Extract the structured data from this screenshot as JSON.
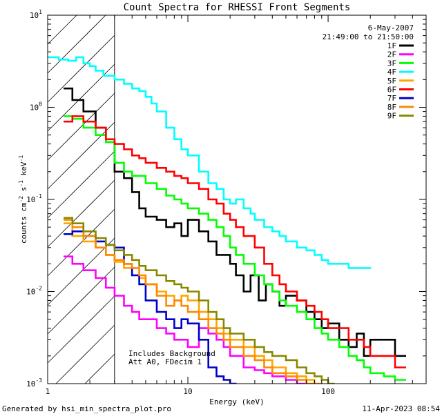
{
  "chart_data": {
    "type": "line",
    "title": "Count Spectra for RHESSI Front Segments",
    "xlabel": "Energy (keV)",
    "ylabel_parts": [
      "counts cm",
      "-2",
      " s",
      "-1",
      " keV",
      "-1"
    ],
    "xscale": "log",
    "yscale": "log",
    "xlim": [
      1,
      500
    ],
    "ylim": [
      0.001,
      10
    ],
    "x_ticks": [
      {
        "value": 1,
        "label": "1"
      },
      {
        "value": 10,
        "label": "10"
      },
      {
        "value": 100,
        "label": "100"
      }
    ],
    "y_ticks": [
      {
        "value": 0.001,
        "base": "10",
        "exp": "-3"
      },
      {
        "value": 0.01,
        "base": "10",
        "exp": "-2"
      },
      {
        "value": 0.1,
        "base": "10",
        "exp": "-1"
      },
      {
        "value": 1,
        "base": "10",
        "exp": "0"
      },
      {
        "value": 10,
        "base": "10",
        "exp": "1"
      }
    ],
    "hatched_region_keV": [
      1,
      3
    ],
    "legend_header": [
      "6-May-2007",
      "21:49:00 to 21:50:00"
    ],
    "annotations": [
      "Includes Background",
      "Att A0, FDecim 1"
    ],
    "series": [
      {
        "name": "1F",
        "color": "#000000",
        "points": [
          [
            1.3,
            1.6
          ],
          [
            1.5,
            1.2
          ],
          [
            1.8,
            0.9
          ],
          [
            2.2,
            0.6
          ],
          [
            2.6,
            0.42
          ],
          [
            3.0,
            0.2
          ],
          [
            3.5,
            0.17
          ],
          [
            4.0,
            0.12
          ],
          [
            4.5,
            0.08
          ],
          [
            5.0,
            0.065
          ],
          [
            6.0,
            0.06
          ],
          [
            7.0,
            0.05
          ],
          [
            8.0,
            0.055
          ],
          [
            9.0,
            0.04
          ],
          [
            10.0,
            0.06
          ],
          [
            12,
            0.045
          ],
          [
            14,
            0.035
          ],
          [
            16,
            0.025
          ],
          [
            18,
            0.025
          ],
          [
            20,
            0.02
          ],
          [
            22,
            0.015
          ],
          [
            25,
            0.01
          ],
          [
            28,
            0.015
          ],
          [
            32,
            0.008
          ],
          [
            36,
            0.012
          ],
          [
            40,
            0.01
          ],
          [
            45,
            0.007
          ],
          [
            50,
            0.009
          ],
          [
            60,
            0.008
          ],
          [
            70,
            0.006
          ],
          [
            80,
            0.005
          ],
          [
            90,
            0.004
          ],
          [
            100,
            0.0045
          ],
          [
            120,
            0.003
          ],
          [
            140,
            0.0025
          ],
          [
            160,
            0.0035
          ],
          [
            180,
            0.002
          ],
          [
            200,
            0.003
          ],
          [
            250,
            0.003
          ],
          [
            300,
            0.002
          ]
        ]
      },
      {
        "name": "2F",
        "color": "#ff00ff",
        "points": [
          [
            1.3,
            0.024
          ],
          [
            1.5,
            0.02
          ],
          [
            1.8,
            0.017
          ],
          [
            2.2,
            0.014
          ],
          [
            2.6,
            0.011
          ],
          [
            3.0,
            0.009
          ],
          [
            3.5,
            0.007
          ],
          [
            4.0,
            0.006
          ],
          [
            4.5,
            0.005
          ],
          [
            5.0,
            0.005
          ],
          [
            6.0,
            0.004
          ],
          [
            7.0,
            0.0035
          ],
          [
            8.0,
            0.003
          ],
          [
            9.0,
            0.003
          ],
          [
            10,
            0.0025
          ],
          [
            12,
            0.004
          ],
          [
            14,
            0.0035
          ],
          [
            16,
            0.003
          ],
          [
            18,
            0.0025
          ],
          [
            20,
            0.002
          ],
          [
            25,
            0.0015
          ],
          [
            30,
            0.0014
          ],
          [
            35,
            0.0013
          ],
          [
            40,
            0.0012
          ],
          [
            50,
            0.0011
          ],
          [
            60,
            0.001
          ]
        ]
      },
      {
        "name": "3F",
        "color": "#00ff00",
        "points": [
          [
            1.3,
            0.8
          ],
          [
            1.5,
            0.75
          ],
          [
            1.8,
            0.6
          ],
          [
            2.2,
            0.5
          ],
          [
            2.6,
            0.42
          ],
          [
            3.0,
            0.25
          ],
          [
            3.5,
            0.2
          ],
          [
            4.0,
            0.18
          ],
          [
            5.0,
            0.15
          ],
          [
            6.0,
            0.13
          ],
          [
            7.0,
            0.11
          ],
          [
            8.0,
            0.1
          ],
          [
            9.0,
            0.09
          ],
          [
            10,
            0.08
          ],
          [
            12,
            0.07
          ],
          [
            14,
            0.06
          ],
          [
            16,
            0.05
          ],
          [
            18,
            0.04
          ],
          [
            20,
            0.03
          ],
          [
            22,
            0.025
          ],
          [
            25,
            0.02
          ],
          [
            30,
            0.015
          ],
          [
            35,
            0.012
          ],
          [
            40,
            0.01
          ],
          [
            45,
            0.008
          ],
          [
            50,
            0.007
          ],
          [
            60,
            0.006
          ],
          [
            70,
            0.005
          ],
          [
            80,
            0.004
          ],
          [
            90,
            0.0035
          ],
          [
            100,
            0.003
          ],
          [
            120,
            0.0025
          ],
          [
            140,
            0.002
          ],
          [
            160,
            0.0018
          ],
          [
            180,
            0.0015
          ],
          [
            200,
            0.0013
          ],
          [
            250,
            0.0012
          ],
          [
            300,
            0.0011
          ]
        ]
      },
      {
        "name": "4F",
        "color": "#00ffff",
        "points": [
          [
            1.0,
            3.5
          ],
          [
            1.2,
            3.3
          ],
          [
            1.4,
            3.2
          ],
          [
            1.6,
            3.5
          ],
          [
            1.8,
            3.0
          ],
          [
            2.0,
            2.8
          ],
          [
            2.2,
            2.5
          ],
          [
            2.5,
            2.2
          ],
          [
            3.0,
            2.0
          ],
          [
            3.5,
            1.8
          ],
          [
            4.0,
            1.6
          ],
          [
            4.5,
            1.5
          ],
          [
            5.0,
            1.3
          ],
          [
            5.5,
            1.1
          ],
          [
            6.0,
            0.9
          ],
          [
            7.0,
            0.6
          ],
          [
            8.0,
            0.45
          ],
          [
            9.0,
            0.35
          ],
          [
            10,
            0.3
          ],
          [
            12,
            0.2
          ],
          [
            14,
            0.15
          ],
          [
            16,
            0.13
          ],
          [
            18,
            0.1
          ],
          [
            20,
            0.09
          ],
          [
            22,
            0.1
          ],
          [
            25,
            0.08
          ],
          [
            28,
            0.07
          ],
          [
            30,
            0.06
          ],
          [
            35,
            0.05
          ],
          [
            40,
            0.045
          ],
          [
            45,
            0.04
          ],
          [
            50,
            0.035
          ],
          [
            60,
            0.03
          ],
          [
            70,
            0.028
          ],
          [
            80,
            0.025
          ],
          [
            90,
            0.022
          ],
          [
            100,
            0.02
          ],
          [
            120,
            0.02
          ],
          [
            140,
            0.018
          ],
          [
            160,
            0.018
          ],
          [
            180,
            0.018
          ]
        ]
      },
      {
        "name": "5F",
        "color": "#ffa500",
        "points": [
          [
            1.3,
            0.055
          ],
          [
            1.5,
            0.04
          ],
          [
            1.8,
            0.035
          ],
          [
            2.2,
            0.03
          ],
          [
            2.6,
            0.025
          ],
          [
            3.0,
            0.021
          ],
          [
            3.5,
            0.018
          ],
          [
            4.0,
            0.015
          ],
          [
            4.5,
            0.014
          ],
          [
            5.0,
            0.012
          ],
          [
            6.0,
            0.01
          ],
          [
            7.0,
            0.009
          ],
          [
            8.0,
            0.008
          ],
          [
            9.0,
            0.009
          ],
          [
            10,
            0.008
          ],
          [
            12,
            0.006
          ],
          [
            14,
            0.005
          ],
          [
            16,
            0.004
          ],
          [
            18,
            0.0035
          ],
          [
            20,
            0.003
          ],
          [
            25,
            0.0025
          ],
          [
            30,
            0.002
          ],
          [
            35,
            0.0018
          ],
          [
            40,
            0.0015
          ],
          [
            50,
            0.0013
          ],
          [
            60,
            0.0012
          ],
          [
            70,
            0.0011
          ],
          [
            80,
            0.001
          ]
        ]
      },
      {
        "name": "6F",
        "color": "#ff0000",
        "points": [
          [
            1.3,
            0.7
          ],
          [
            1.5,
            0.8
          ],
          [
            1.8,
            0.7
          ],
          [
            2.2,
            0.6
          ],
          [
            2.6,
            0.45
          ],
          [
            3.0,
            0.4
          ],
          [
            3.5,
            0.35
          ],
          [
            4.0,
            0.3
          ],
          [
            4.5,
            0.28
          ],
          [
            5.0,
            0.25
          ],
          [
            6.0,
            0.22
          ],
          [
            7.0,
            0.2
          ],
          [
            8.0,
            0.18
          ],
          [
            9.0,
            0.17
          ],
          [
            10,
            0.15
          ],
          [
            12,
            0.13
          ],
          [
            14,
            0.1
          ],
          [
            16,
            0.09
          ],
          [
            18,
            0.07
          ],
          [
            20,
            0.06
          ],
          [
            22,
            0.05
          ],
          [
            25,
            0.04
          ],
          [
            30,
            0.03
          ],
          [
            35,
            0.02
          ],
          [
            40,
            0.015
          ],
          [
            45,
            0.012
          ],
          [
            50,
            0.01
          ],
          [
            60,
            0.008
          ],
          [
            70,
            0.007
          ],
          [
            80,
            0.006
          ],
          [
            90,
            0.005
          ],
          [
            100,
            0.004
          ],
          [
            120,
            0.004
          ],
          [
            140,
            0.003
          ],
          [
            160,
            0.003
          ],
          [
            180,
            0.0025
          ],
          [
            200,
            0.002
          ],
          [
            250,
            0.002
          ],
          [
            300,
            0.0015
          ]
        ]
      },
      {
        "name": "7F",
        "color": "#0000cc",
        "points": [
          [
            1.3,
            0.042
          ],
          [
            1.5,
            0.045
          ],
          [
            1.8,
            0.04
          ],
          [
            2.2,
            0.035
          ],
          [
            2.6,
            0.032
          ],
          [
            3.0,
            0.03
          ],
          [
            3.5,
            0.02
          ],
          [
            4.0,
            0.015
          ],
          [
            4.5,
            0.012
          ],
          [
            5.0,
            0.008
          ],
          [
            6.0,
            0.006
          ],
          [
            7.0,
            0.005
          ],
          [
            8.0,
            0.004
          ],
          [
            9.0,
            0.005
          ],
          [
            10,
            0.0045
          ],
          [
            12,
            0.003
          ],
          [
            14,
            0.0015
          ],
          [
            16,
            0.0012
          ],
          [
            18,
            0.0011
          ],
          [
            20,
            0.001
          ]
        ]
      },
      {
        "name": "8F",
        "color": "#ff8800",
        "points": [
          [
            1.3,
            0.06
          ],
          [
            1.5,
            0.05
          ],
          [
            1.8,
            0.04
          ],
          [
            2.2,
            0.03
          ],
          [
            2.6,
            0.025
          ],
          [
            3.0,
            0.022
          ],
          [
            3.5,
            0.02
          ],
          [
            4.0,
            0.018
          ],
          [
            4.5,
            0.015
          ],
          [
            5.0,
            0.012
          ],
          [
            6.0,
            0.009
          ],
          [
            7.0,
            0.007
          ],
          [
            8.0,
            0.008
          ],
          [
            9.0,
            0.007
          ],
          [
            10,
            0.006
          ],
          [
            12,
            0.005
          ],
          [
            14,
            0.004
          ],
          [
            16,
            0.0035
          ],
          [
            18,
            0.003
          ],
          [
            20,
            0.0025
          ],
          [
            25,
            0.002
          ],
          [
            30,
            0.0018
          ],
          [
            35,
            0.0015
          ],
          [
            40,
            0.0013
          ],
          [
            50,
            0.0012
          ],
          [
            60,
            0.0011
          ],
          [
            70,
            0.001
          ]
        ]
      },
      {
        "name": "9F",
        "color": "#888800",
        "points": [
          [
            1.3,
            0.063
          ],
          [
            1.5,
            0.055
          ],
          [
            1.8,
            0.045
          ],
          [
            2.2,
            0.038
          ],
          [
            2.6,
            0.032
          ],
          [
            3.0,
            0.028
          ],
          [
            3.5,
            0.025
          ],
          [
            4.0,
            0.022
          ],
          [
            4.5,
            0.019
          ],
          [
            5.0,
            0.017
          ],
          [
            6.0,
            0.015
          ],
          [
            7.0,
            0.013
          ],
          [
            8.0,
            0.012
          ],
          [
            9.0,
            0.011
          ],
          [
            10,
            0.01
          ],
          [
            12,
            0.008
          ],
          [
            14,
            0.006
          ],
          [
            16,
            0.005
          ],
          [
            18,
            0.004
          ],
          [
            20,
            0.0035
          ],
          [
            25,
            0.003
          ],
          [
            30,
            0.0025
          ],
          [
            35,
            0.0022
          ],
          [
            40,
            0.002
          ],
          [
            50,
            0.0018
          ],
          [
            60,
            0.0015
          ],
          [
            70,
            0.0013
          ],
          [
            80,
            0.0012
          ],
          [
            90,
            0.0011
          ],
          [
            100,
            0.001
          ]
        ]
      }
    ]
  },
  "footer": {
    "left": "Generated by hsi_min_spectra_plot.pro",
    "right": "11-Apr-2023 08:54"
  }
}
